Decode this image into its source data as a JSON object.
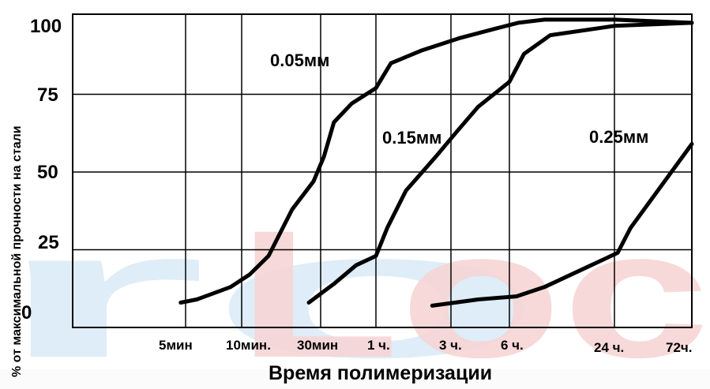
{
  "chart_data": {
    "type": "line",
    "xlabel": "Время полимеризации",
    "ylabel": "% от максимальной прочности на стали",
    "ylim": [
      0,
      100
    ],
    "y_ticks": [
      "0",
      "25",
      "50",
      "75",
      "100"
    ],
    "x_ticks": [
      "5мин",
      "10мин.",
      "30мин",
      "1 ч.",
      "3 ч.",
      "6 ч.",
      "24 ч.",
      "72ч."
    ],
    "x_tick_hours": [
      0.0833,
      0.1667,
      0.5,
      1,
      3,
      6,
      24,
      72
    ],
    "grid": true,
    "series": [
      {
        "name": "0.05мм",
        "x": [
          0.076,
          0.1,
          0.15,
          0.2,
          0.28,
          0.38,
          0.47,
          0.53,
          0.62,
          0.78,
          1.0,
          1.4,
          2.2,
          3.4,
          5.2,
          7.5,
          12,
          24,
          72
        ],
        "y": [
          8,
          9,
          13,
          17,
          23,
          38,
          47,
          55,
          66,
          72,
          77,
          85,
          89,
          93,
          96,
          98,
          99,
          99,
          98
        ]
      },
      {
        "name": "0.15мм",
        "x": [
          0.45,
          0.62,
          0.82,
          1.0,
          1.3,
          1.8,
          2.6,
          3.3,
          4.4,
          6.0,
          8.5,
          13,
          24,
          72
        ],
        "y": [
          8,
          14,
          20,
          23,
          32,
          44,
          55,
          63,
          71,
          79,
          88,
          94,
          97,
          98
        ]
      },
      {
        "name": "0.25мм",
        "x": [
          2.5,
          4.4,
          7.2,
          12,
          20,
          26,
          34,
          72
        ],
        "y": [
          7,
          9,
          10,
          13,
          20,
          24,
          32,
          59
        ]
      }
    ],
    "watermark": "roLoc"
  }
}
